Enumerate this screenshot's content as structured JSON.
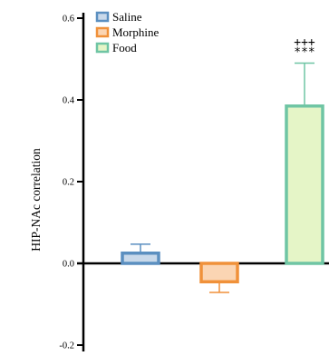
{
  "chart_data": {
    "type": "bar",
    "title": "",
    "xlabel": "",
    "ylabel": "HIP-NAc correlation",
    "ylim": [
      -0.2,
      0.6
    ],
    "yticks": [
      -0.2,
      0.0,
      0.2,
      0.4,
      0.6
    ],
    "ytick_labels": [
      "-0.2",
      "0.0",
      "0.2",
      "0.4",
      "0.6"
    ],
    "grid": false,
    "legend_position": "top-left",
    "series": [
      {
        "name": "Saline",
        "value": 0.025,
        "error": 0.022,
        "fill": "#c9d9ea",
        "stroke": "#5b8fc0"
      },
      {
        "name": "Morphine",
        "value": -0.045,
        "error": 0.026,
        "fill": "#fbd5b3",
        "stroke": "#f0913a"
      },
      {
        "name": "Food",
        "value": 0.385,
        "error": 0.105,
        "fill": "#e5f5c7",
        "stroke": "#6fc5a4"
      }
    ],
    "annotations": [
      {
        "series": "Food",
        "lines": [
          "+++",
          "***"
        ]
      }
    ]
  }
}
